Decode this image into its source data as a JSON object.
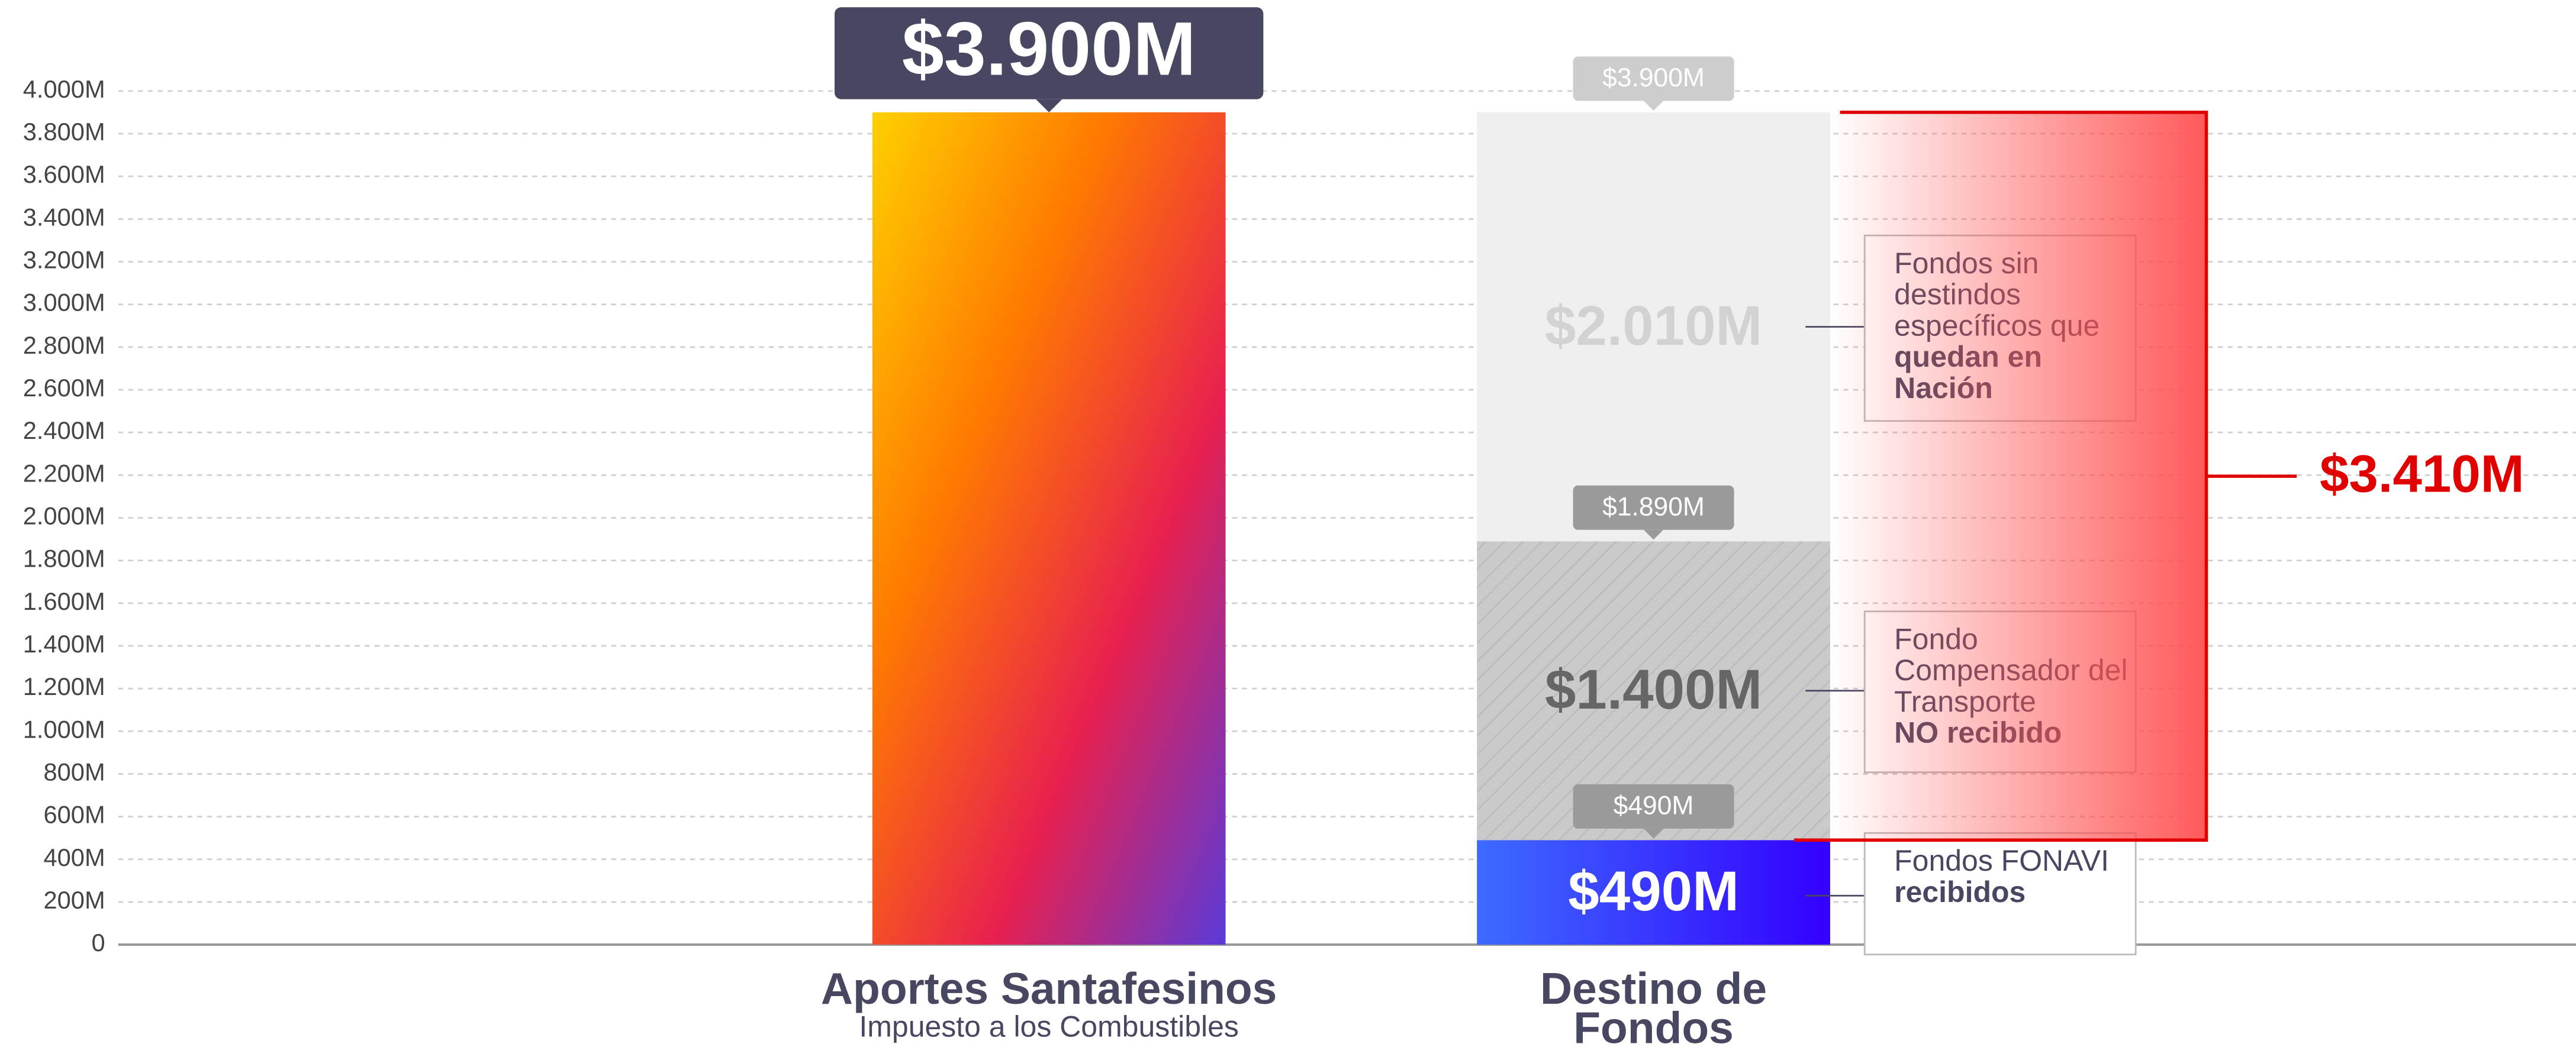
{
  "chart_data": {
    "type": "bar",
    "stacked": true,
    "categories": [
      "Aportes Santafesinos",
      "Destino de Fondos"
    ],
    "x_subtitle": "Impuesto a los Combustibles",
    "series": [
      {
        "values": [
          3900,
          null
        ],
        "value_labels": [
          "$3.900M",
          null
        ],
        "color": [
          "#ffd000",
          "#ff7a00",
          "#e8204f",
          "#5a3ad8"
        ]
      },
      {
        "label": {
          "regular": "Fondos FONAVI",
          "bold": "recibidos"
        },
        "values": [
          null,
          490
        ],
        "value_labels": [
          null,
          "$490M"
        ],
        "color": [
          "#3d6bff",
          "#3300ff"
        ]
      },
      {
        "label": {
          "regular": "Fondo Compensador del Transporte",
          "bold": "NO recibido"
        },
        "values": [
          null,
          1400
        ],
        "value_labels": [
          null,
          "$1.400M"
        ],
        "color": "#cacaca",
        "pattern": "hatch"
      },
      {
        "label": {
          "regular": "Fondos sin destindos específicos que",
          "bold": "quedan en Nación"
        },
        "values": [
          null,
          2010
        ],
        "value_labels": [
          null,
          "$2.010M"
        ],
        "color": "#efefef"
      }
    ],
    "stack_totals": [
      "$490M",
      "$1.890M",
      "$3.900M"
    ],
    "bracket_label": "$3.410M",
    "bracket_color": "#e00000",
    "ylim": [
      0,
      4000
    ],
    "yticks": [
      0,
      {
        "value": 200,
        "label": "200M"
      },
      {
        "value": 400,
        "label": "400M"
      },
      {
        "value": 600,
        "label": "600M"
      },
      {
        "value": 800,
        "label": "800M"
      },
      {
        "value": 1000,
        "label": "1.000M"
      },
      {
        "value": 1200,
        "label": "1.200M"
      },
      {
        "value": 1400,
        "label": "1.400M"
      },
      {
        "value": 1600,
        "label": "1.600M"
      },
      {
        "value": 1800,
        "label": "1.800M"
      },
      {
        "value": 2000,
        "label": "2.000M"
      },
      {
        "value": 2200,
        "label": "2.200M"
      },
      {
        "value": 2400,
        "label": "2.400M"
      },
      {
        "value": 2600,
        "label": "2.600M"
      },
      {
        "value": 2800,
        "label": "2.800M"
      },
      {
        "value": 3000,
        "label": "3.000M"
      },
      {
        "value": 3200,
        "label": "3.200M"
      },
      {
        "value": 3400,
        "label": "3.400M"
      },
      {
        "value": 3600,
        "label": "3.600M"
      },
      {
        "value": 3800,
        "label": "3.800M"
      },
      {
        "value": 4000,
        "label": "4.000M"
      }
    ],
    "grid": true
  }
}
